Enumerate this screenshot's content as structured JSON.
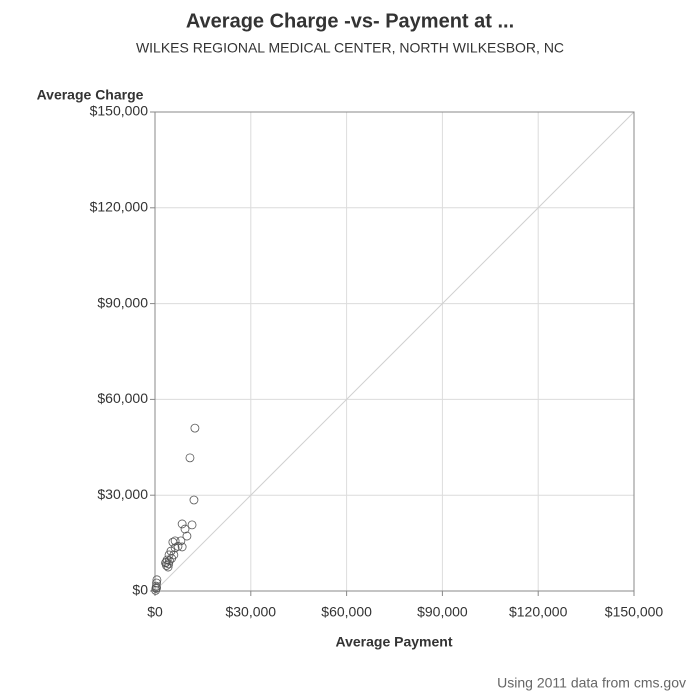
{
  "chart_data": {
    "type": "scatter",
    "title": "Average Charge -vs- Payment at ...",
    "subtitle": "WILKES REGIONAL MEDICAL CENTER, NORTH WILKESBOR, NC",
    "x_label": "Average Payment",
    "y_label": "Average Charge",
    "footnote": "Using 2011 data from cms.gov",
    "x": [
      12500,
      10950,
      12200,
      11600,
      8500,
      9400,
      10000,
      8100,
      8500,
      6300,
      5600,
      6300,
      5000,
      4400,
      5900,
      3800,
      4500,
      3500,
      4300,
      3600,
      4100,
      5200,
      3300,
      7200,
      600,
      500,
      400,
      300,
      200,
      500
    ],
    "y": [
      51000,
      41700,
      28500,
      20700,
      21000,
      19400,
      17200,
      15700,
      13800,
      15700,
      15300,
      13500,
      12500,
      11300,
      11300,
      9700,
      9500,
      9000,
      8500,
      8000,
      7500,
      10200,
      8800,
      14000,
      3500,
      2500,
      1500,
      800,
      200,
      1000
    ],
    "color": "#555555",
    "xlim": [
      0,
      150000
    ],
    "ylim": [
      0,
      150000
    ],
    "xticks": [
      {
        "value": 0,
        "label": "$0"
      },
      {
        "value": 30000,
        "label": "$30,000"
      },
      {
        "value": 60000,
        "label": "$60,000"
      },
      {
        "value": 90000,
        "label": "$90,000"
      },
      {
        "value": 120000,
        "label": "$120,000"
      },
      {
        "value": 150000,
        "label": "$150,000"
      }
    ],
    "yticks": [
      {
        "value": 0,
        "label": "$0"
      },
      {
        "value": 30000,
        "label": "$30,000"
      },
      {
        "value": 60000,
        "label": "$60,000"
      },
      {
        "value": 90000,
        "label": "$90,000"
      },
      {
        "value": 120000,
        "label": "$120,000"
      },
      {
        "value": 150000,
        "label": "$150,000"
      }
    ],
    "grid": true,
    "diagonal": true
  }
}
